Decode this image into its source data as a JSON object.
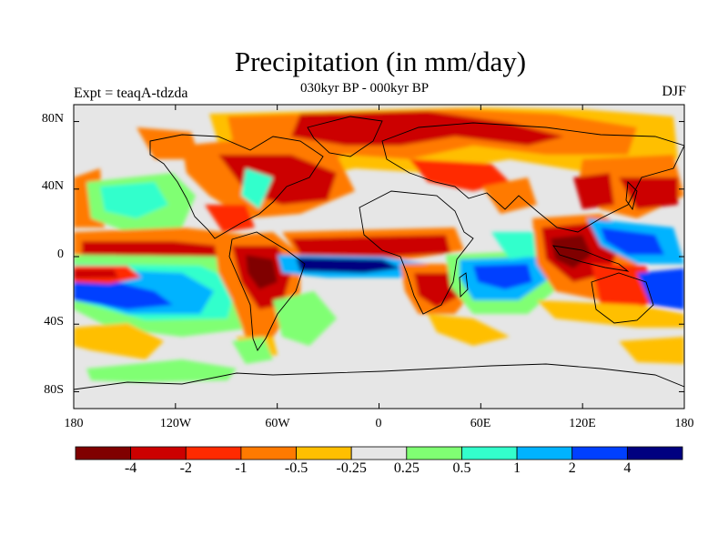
{
  "header": {
    "title": "Precipitation (in mm/day)",
    "subtitle": "030kyr BP - 000kyr BP",
    "experiment": "Expt = teaqA-tdzda",
    "season": "DJF"
  },
  "map": {
    "lat_range": [
      -90,
      90
    ],
    "lon_range": [
      -180,
      180
    ],
    "lat_ticks": [
      "80N",
      "40N",
      "0",
      "40S",
      "80S"
    ],
    "lon_ticks": [
      "180",
      "120W",
      "60W",
      "0",
      "60E",
      "120E",
      "180"
    ],
    "background_color": "#e6e6e6",
    "coast_color": "#000000"
  },
  "colorbar": {
    "colors": [
      "#800000",
      "#cc0000",
      "#ff2a00",
      "#ff7a00",
      "#ffbf00",
      "#e6e6e6",
      "#80ff73",
      "#33ffcc",
      "#00b3ff",
      "#0040ff",
      "#000080"
    ],
    "labels": [
      "-4",
      "-2",
      "-1",
      "-0.5",
      "-0.25",
      "0.25",
      "0.5",
      "1",
      "2",
      "4"
    ]
  },
  "chart_data": {
    "type": "heatmap",
    "title": "Precipitation (in mm/day)",
    "subtitle": "030kyr BP - 000kyr BP",
    "variable": "precipitation anomaly",
    "units": "mm/day",
    "levels": [
      -4,
      -2,
      -1,
      -0.5,
      -0.25,
      0.25,
      0.5,
      1,
      2,
      4
    ],
    "xlabel": "",
    "ylabel": "",
    "xlim": [
      -180,
      180
    ],
    "ylim": [
      -90,
      90
    ],
    "regions": [
      {
        "name": "arctic-europe-drying",
        "lon": [
          -20,
          90
        ],
        "lat": [
          55,
          85
        ],
        "level": -2
      },
      {
        "name": "siberia-drying",
        "lon": [
          60,
          150
        ],
        "lat": [
          58,
          80
        ],
        "level": -1
      },
      {
        "name": "north-atlantic-drying",
        "lon": [
          -70,
          -10
        ],
        "lat": [
          30,
          62
        ],
        "level": -2
      },
      {
        "name": "north-pacific-drying",
        "lon": [
          140,
          180
        ],
        "lat": [
          30,
          50
        ],
        "level": -1
      },
      {
        "name": "central-pacific-dry-band",
        "lon": [
          -180,
          -140
        ],
        "lat": [
          -12,
          -2
        ],
        "level": -2
      },
      {
        "name": "pacific-wet-band",
        "lon": [
          -180,
          -130
        ],
        "lat": [
          -28,
          -14
        ],
        "level": 2
      },
      {
        "name": "amazon-drying",
        "lon": [
          -80,
          -45
        ],
        "lat": [
          -25,
          5
        ],
        "level": -2
      },
      {
        "name": "tropical-atlantic-wetting",
        "lon": [
          -50,
          -5
        ],
        "lat": [
          -12,
          0
        ],
        "level": 4
      },
      {
        "name": "west-africa-drying",
        "lon": [
          -25,
          30
        ],
        "lat": [
          2,
          10
        ],
        "level": -2
      },
      {
        "name": "southern-africa-drying",
        "lon": [
          15,
          45
        ],
        "lat": [
          -30,
          -10
        ],
        "level": -2
      },
      {
        "name": "indian-ocean-wetting",
        "lon": [
          50,
          95
        ],
        "lat": [
          -25,
          -5
        ],
        "level": 2
      },
      {
        "name": "maritime-continent-drying",
        "lon": [
          95,
          125
        ],
        "lat": [
          -15,
          10
        ],
        "level": -4
      },
      {
        "name": "western-pacific-wetting",
        "lon": [
          125,
          160
        ],
        "lat": [
          0,
          20
        ],
        "level": 2
      },
      {
        "name": "northern-australia-drying",
        "lon": [
          120,
          150
        ],
        "lat": [
          -30,
          -10
        ],
        "level": -2
      },
      {
        "name": "south-pacific-convergence-wetting",
        "lon": [
          155,
          180
        ],
        "lat": [
          -25,
          -8
        ],
        "level": 2
      },
      {
        "name": "southern-ocean-wetting",
        "lon": [
          -140,
          -60
        ],
        "lat": [
          -62,
          -52
        ],
        "level": 0.5
      }
    ]
  }
}
